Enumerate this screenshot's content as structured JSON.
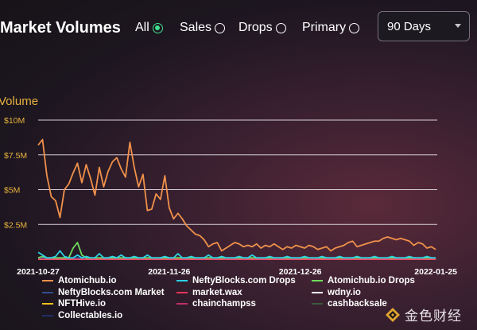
{
  "header": {
    "title": "Market Volumes",
    "filters": [
      {
        "label": "All",
        "checked": true
      },
      {
        "label": "Sales",
        "checked": false
      },
      {
        "label": "Drops",
        "checked": false
      },
      {
        "label": "Primary",
        "checked": false
      }
    ],
    "range_select": "90 Days"
  },
  "watermark": "金色财经",
  "chart_data": {
    "type": "line",
    "ylabel": "Volume",
    "ylim": [
      0,
      10000000
    ],
    "yticks": [
      "$2.5M",
      "$5M",
      "$7.5M",
      "$10M"
    ],
    "ytick_values": [
      2500000,
      5000000,
      7500000,
      10000000
    ],
    "xticks": [
      "2021-10-27",
      "2021-11-26",
      "2021-12-26",
      "2022-01-25"
    ],
    "grid": true,
    "legend_position": "bottom",
    "x_start": "2021-10-27",
    "x_end": "2022-01-26",
    "series": [
      {
        "name": "Atomichub.io",
        "color": "#f0914a",
        "values": [
          8.2,
          8.6,
          6.0,
          4.5,
          4.2,
          3.0,
          5.0,
          5.4,
          6.2,
          6.9,
          5.5,
          6.8,
          5.8,
          4.6,
          6.6,
          5.2,
          6.3,
          7.0,
          7.3,
          6.5,
          5.9,
          8.4,
          6.6,
          5.2,
          6.1,
          3.5,
          3.6,
          4.7,
          4.3,
          6.0,
          3.7,
          2.9,
          3.3,
          2.9,
          2.4,
          2.1,
          1.8,
          1.7,
          1.4,
          0.9,
          1.1,
          1.2,
          0.6,
          0.8,
          1.0,
          1.2,
          1.1,
          0.9,
          1.0,
          0.9,
          1.1,
          0.8,
          1.0,
          0.9,
          1.1,
          0.9,
          0.7,
          0.9,
          0.8,
          1.0,
          0.9,
          0.8,
          1.0,
          0.9,
          0.7,
          0.8,
          0.9,
          0.6,
          0.8,
          0.9,
          1.0,
          1.2,
          1.3,
          0.9,
          1.0,
          1.1,
          1.2,
          1.3,
          1.3,
          1.5,
          1.6,
          1.5,
          1.4,
          1.5,
          1.4,
          1.3,
          1.0,
          1.2,
          1.1,
          0.8,
          0.9,
          0.7
        ]
      },
      {
        "name": "NeftyBlocks.com Drops",
        "color": "#2bd1e6",
        "values": [
          0.5,
          0.3,
          0.1,
          0.1,
          0.2,
          0.6,
          0.2,
          0.1,
          0.1,
          0.3,
          0.1,
          0.2,
          0.1,
          0.1,
          0.4,
          0.1,
          0.1,
          0.2,
          0.1,
          0.3,
          0.1,
          0.1,
          0.2,
          0.1,
          0.1,
          0.3,
          0.1,
          0.1,
          0.1,
          0.2,
          0.1,
          0.1,
          0.4,
          0.1,
          0.1,
          0.2,
          0.1,
          0.1,
          0.1,
          0.3,
          0.1,
          0.1,
          0.2,
          0.1,
          0.1,
          0.1,
          0.2,
          0.1,
          0.1,
          0.3,
          0.1,
          0.1,
          0.1,
          0.2,
          0.1,
          0.1,
          0.1,
          0.2,
          0.1,
          0.1,
          0.1,
          0.2,
          0.1,
          0.1,
          0.1,
          0.2,
          0.1,
          0.1,
          0.1,
          0.2,
          0.1,
          0.1,
          0.1,
          0.2,
          0.1,
          0.1,
          0.1,
          0.2,
          0.1,
          0.1,
          0.1,
          0.2,
          0.1,
          0.1,
          0.1,
          0.2,
          0.1,
          0.1,
          0.1,
          0.2,
          0.1,
          0.1
        ]
      },
      {
        "name": "Atomichub.io Drops",
        "color": "#6fdc5a",
        "values": [
          0.1,
          0.2,
          0.1,
          0.1,
          0.1,
          0.1,
          0.1,
          0.1,
          0.8,
          1.2,
          0.3,
          0.1,
          0.1,
          0.1,
          0.1,
          0.1,
          0.1,
          0.1,
          0.1,
          0.1,
          0.1,
          0.1,
          0.1,
          0.1,
          0.1,
          0.1,
          0.1,
          0.1,
          0.1,
          0.1,
          0.1,
          0.1,
          0.1,
          0.1,
          0.1,
          0.1,
          0.1,
          0.1,
          0.1,
          0.1,
          0.1,
          0.1,
          0.1,
          0.1,
          0.1,
          0.1,
          0.1,
          0.1,
          0.1,
          0.1,
          0.1,
          0.1,
          0.1,
          0.1,
          0.1,
          0.1,
          0.1,
          0.1,
          0.1,
          0.1,
          0.1,
          0.1,
          0.1,
          0.1,
          0.1,
          0.1,
          0.1,
          0.1,
          0.1,
          0.1,
          0.1,
          0.1,
          0.1,
          0.1,
          0.1,
          0.1,
          0.1,
          0.1,
          0.1,
          0.1,
          0.1,
          0.1,
          0.1,
          0.1,
          0.1,
          0.1,
          0.1,
          0.1,
          0.1,
          0.1,
          0.1,
          0.1
        ]
      },
      {
        "name": "NeftyBlocks.com Market",
        "color": "#2f4f8f",
        "values": [
          0.1,
          0.1,
          0.1,
          0.1,
          0.1,
          0.1,
          0.1,
          0.1,
          0.1,
          0.1,
          0.1,
          0.1,
          0.1,
          0.1,
          0.1,
          0.1,
          0.1,
          0.1,
          0.1,
          0.1,
          0.1,
          0.1,
          0.1,
          0.1,
          0.1,
          0.1,
          0.1,
          0.1,
          0.1,
          0.1,
          0.1,
          0.1,
          0.1,
          0.1,
          0.1,
          0.1,
          0.1,
          0.1,
          0.1,
          0.1,
          0.1,
          0.1,
          0.1,
          0.1,
          0.1,
          0.1,
          0.1,
          0.1,
          0.1,
          0.1,
          0.1,
          0.1,
          0.1,
          0.1,
          0.1,
          0.1,
          0.1,
          0.1,
          0.1,
          0.1,
          0.1,
          0.1,
          0.1,
          0.1,
          0.1,
          0.1,
          0.1,
          0.1,
          0.1,
          0.1,
          0.1,
          0.1,
          0.1,
          0.1,
          0.1,
          0.1,
          0.1,
          0.1,
          0.1,
          0.1,
          0.1,
          0.1,
          0.1,
          0.1,
          0.1,
          0.1,
          0.1,
          0.1,
          0.1,
          0.1,
          0.1,
          0.1
        ]
      },
      {
        "name": "market.wax",
        "color": "#e8345a",
        "values": [
          0,
          0,
          0,
          0,
          0,
          0,
          0,
          0,
          0,
          0,
          0,
          0,
          0,
          0,
          0,
          0,
          0,
          0,
          0,
          0,
          0,
          0,
          0,
          0,
          0,
          0,
          0,
          0,
          0,
          0,
          0,
          0,
          0,
          0,
          0,
          0,
          0,
          0,
          0,
          0,
          0,
          0,
          0,
          0,
          0,
          0,
          0,
          0,
          0,
          0,
          0,
          0,
          0,
          0,
          0,
          0,
          0,
          0,
          0,
          0,
          0,
          0,
          0,
          0,
          0,
          0,
          0,
          0,
          0,
          0,
          0,
          0,
          0,
          0,
          0,
          0,
          0,
          0,
          0,
          0,
          0,
          0,
          0,
          0,
          0,
          0,
          0,
          0,
          0,
          0,
          0,
          0
        ]
      },
      {
        "name": "wdny.io",
        "color": "#ffffff",
        "values": [
          0,
          0,
          0,
          0,
          0,
          0,
          0,
          0,
          0,
          0,
          0,
          0,
          0,
          0,
          0,
          0,
          0,
          0,
          0,
          0,
          0,
          0,
          0,
          0,
          0,
          0,
          0,
          0,
          0,
          0,
          0,
          0,
          0,
          0,
          0,
          0,
          0,
          0,
          0,
          0,
          0,
          0,
          0,
          0,
          0,
          0,
          0,
          0,
          0,
          0,
          0,
          0,
          0,
          0,
          0,
          0,
          0,
          0,
          0,
          0,
          0,
          0,
          0,
          0,
          0,
          0,
          0,
          0,
          0,
          0,
          0,
          0,
          0,
          0,
          0,
          0,
          0,
          0,
          0,
          0,
          0,
          0,
          0,
          0,
          0,
          0,
          0,
          0,
          0,
          0,
          0,
          0
        ]
      },
      {
        "name": "NFTHive.io",
        "color": "#f2c21b",
        "values": [
          0,
          0,
          0,
          0,
          0,
          0,
          0,
          0,
          0,
          0,
          0,
          0,
          0,
          0,
          0,
          0,
          0,
          0,
          0,
          0,
          0,
          0,
          0,
          0,
          0,
          0,
          0,
          0,
          0,
          0,
          0,
          0,
          0,
          0,
          0,
          0,
          0,
          0,
          0,
          0,
          0,
          0,
          0,
          0,
          0,
          0,
          0,
          0,
          0,
          0,
          0,
          0,
          0,
          0,
          0,
          0,
          0,
          0,
          0,
          0,
          0,
          0,
          0,
          0,
          0,
          0,
          0,
          0,
          0,
          0,
          0,
          0,
          0,
          0,
          0,
          0,
          0,
          0,
          0,
          0,
          0,
          0,
          0,
          0,
          0,
          0,
          0,
          0,
          0,
          0,
          0,
          0
        ]
      },
      {
        "name": "chainchampss",
        "color": "#c0306a",
        "values": [
          0,
          0,
          0,
          0,
          0,
          0,
          0,
          0,
          0,
          0,
          0,
          0,
          0,
          0,
          0,
          0,
          0,
          0,
          0,
          0,
          0,
          0,
          0,
          0,
          0,
          0,
          0,
          0,
          0,
          0,
          0,
          0,
          0,
          0,
          0,
          0,
          0,
          0,
          0,
          0,
          0,
          0,
          0,
          0,
          0,
          0,
          0,
          0,
          0,
          0,
          0,
          0,
          0,
          0,
          0,
          0,
          0,
          0,
          0,
          0,
          0,
          0,
          0,
          0,
          0,
          0,
          0,
          0,
          0,
          0,
          0,
          0,
          0,
          0,
          0,
          0,
          0,
          0,
          0,
          0,
          0,
          0,
          0,
          0,
          0,
          0,
          0,
          0,
          0,
          0,
          0,
          0
        ]
      },
      {
        "name": "cashbacksale",
        "color": "#3b5a3a",
        "values": [
          0,
          0,
          0,
          0,
          0,
          0,
          0,
          0,
          0,
          0,
          0,
          0,
          0,
          0,
          0,
          0,
          0,
          0,
          0,
          0,
          0,
          0,
          0,
          0,
          0,
          0,
          0,
          0,
          0,
          0,
          0,
          0,
          0,
          0,
          0,
          0,
          0,
          0,
          0,
          0,
          0,
          0,
          0,
          0,
          0,
          0,
          0,
          0,
          0,
          0,
          0,
          0,
          0,
          0,
          0,
          0,
          0,
          0,
          0,
          0,
          0,
          0,
          0,
          0,
          0,
          0,
          0,
          0,
          0,
          0,
          0,
          0,
          0,
          0,
          0,
          0,
          0,
          0,
          0,
          0,
          0,
          0,
          0,
          0,
          0,
          0,
          0,
          0,
          0,
          0,
          0,
          0
        ]
      },
      {
        "name": "Collectables.io",
        "color": "#1e2f6a",
        "values": [
          0,
          0,
          0,
          0,
          0,
          0,
          0,
          0,
          0,
          0,
          0,
          0,
          0,
          0,
          0,
          0,
          0,
          0,
          0,
          0,
          0,
          0,
          0,
          0,
          0,
          0,
          0,
          0,
          0,
          0,
          0,
          0,
          0,
          0,
          0,
          0,
          0,
          0,
          0,
          0,
          0,
          0,
          0,
          0,
          0,
          0,
          0,
          0,
          0,
          0,
          0,
          0,
          0,
          0,
          0,
          0,
          0,
          0,
          0,
          0,
          0,
          0,
          0,
          0,
          0,
          0,
          0,
          0,
          0,
          0,
          0,
          0,
          0,
          0,
          0,
          0,
          0,
          0,
          0,
          0,
          0,
          0,
          0,
          0,
          0,
          0,
          0,
          0,
          0,
          0,
          0,
          0
        ]
      }
    ]
  }
}
